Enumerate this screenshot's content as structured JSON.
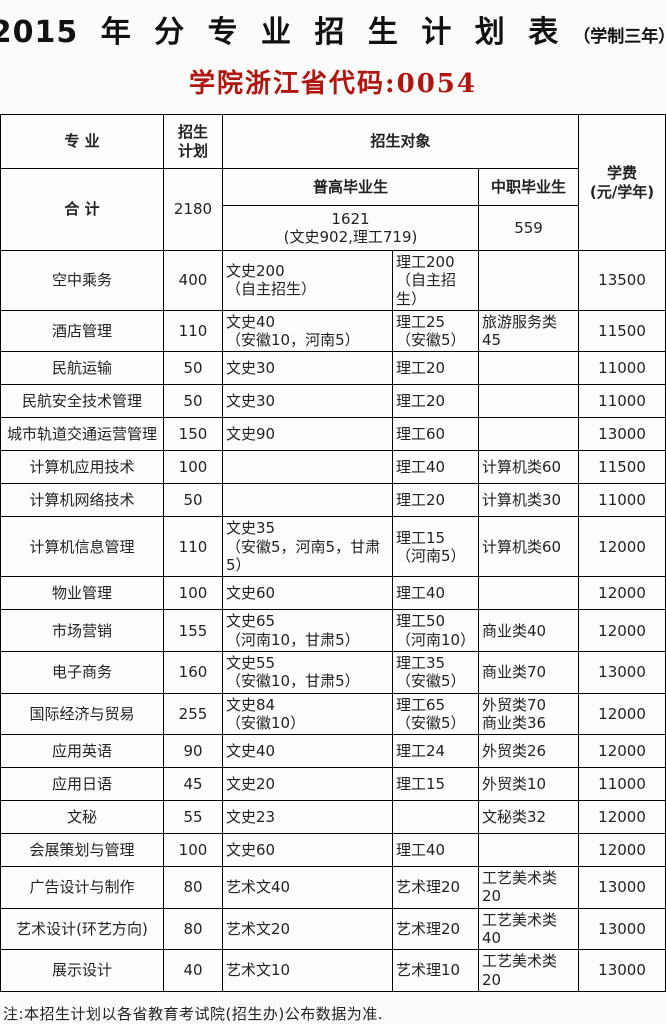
{
  "page": {
    "title": "2015 年 分 专 业 招 生 计 划 表",
    "title_suffix": "（学制三年）",
    "subtitle": "学院浙江省代码:0054",
    "note": "注:本招生计划以各省教育考试院(招生办)公布数据为准.",
    "colors": {
      "subtitle_red": "#b01510",
      "border": "#000000",
      "background": "#fbfbfa"
    }
  },
  "table": {
    "header": {
      "major": "专  业",
      "plan": "招生\n计划",
      "target": "招生对象",
      "regular": "普高毕业生",
      "vocational": "中职毕业生",
      "tuition": "学费\n(元/学年)"
    },
    "summary": {
      "label": "合 计",
      "plan": "2180",
      "regular_total": "1621\n(文史902,理工719)",
      "vocational_total": "559"
    },
    "rows": [
      {
        "major": "空中乘务",
        "plan": "400",
        "wenshi": "文史200\n（自主招生）",
        "ligong": "理工200\n（自主招生）",
        "vocational": "",
        "tuition": "13500"
      },
      {
        "major": "酒店管理",
        "plan": "110",
        "wenshi": "文史40\n（安徽10，河南5）",
        "ligong": "理工25\n（安徽5）",
        "vocational": "旅游服务类45",
        "tuition": "11500"
      },
      {
        "major": "民航运输",
        "plan": "50",
        "wenshi": "文史30",
        "ligong": "理工20",
        "vocational": "",
        "tuition": "11000"
      },
      {
        "major": "民航安全技术管理",
        "plan": "50",
        "wenshi": "文史30",
        "ligong": "理工20",
        "vocational": "",
        "tuition": "11000"
      },
      {
        "major": "城市轨道交通运营管理",
        "plan": "150",
        "wenshi": "文史90",
        "ligong": "理工60",
        "vocational": "",
        "tuition": "13000"
      },
      {
        "major": "计算机应用技术",
        "plan": "100",
        "wenshi": "",
        "ligong": "理工40",
        "vocational": "计算机类60",
        "tuition": "11500"
      },
      {
        "major": "计算机网络技术",
        "plan": "50",
        "wenshi": "",
        "ligong": "理工20",
        "vocational": "计算机类30",
        "tuition": "11000"
      },
      {
        "major": "计算机信息管理",
        "plan": "110",
        "wenshi": "文史35\n（安徽5，河南5，甘肃5）",
        "ligong": "理工15\n（河南5）",
        "vocational": "计算机类60",
        "tuition": "12000"
      },
      {
        "major": "物业管理",
        "plan": "100",
        "wenshi": "文史60",
        "ligong": "理工40",
        "vocational": "",
        "tuition": "12000"
      },
      {
        "major": "市场营销",
        "plan": "155",
        "wenshi": "文史65\n（河南10，甘肃5）",
        "ligong": "理工50\n（河南10）",
        "vocational": "商业类40",
        "tuition": "12000"
      },
      {
        "major": "电子商务",
        "plan": "160",
        "wenshi": "文史55\n（安徽10，甘肃5）",
        "ligong": "理工35\n（安徽5）",
        "vocational": "商业类70",
        "tuition": "13000"
      },
      {
        "major": "国际经济与贸易",
        "plan": "255",
        "wenshi": "文史84\n（安徽10）",
        "ligong": "理工65\n（安徽5）",
        "vocational": "外贸类70\n商业类36",
        "tuition": "12000"
      },
      {
        "major": "应用英语",
        "plan": "90",
        "wenshi": "文史40",
        "ligong": "理工24",
        "vocational": "外贸类26",
        "tuition": "12000"
      },
      {
        "major": "应用日语",
        "plan": "45",
        "wenshi": "文史20",
        "ligong": "理工15",
        "vocational": "外贸类10",
        "tuition": "11000"
      },
      {
        "major": "文秘",
        "plan": "55",
        "wenshi": "文史23",
        "ligong": "",
        "vocational": "文秘类32",
        "tuition": "12000"
      },
      {
        "major": "会展策划与管理",
        "plan": "100",
        "wenshi": "文史60",
        "ligong": "理工40",
        "vocational": "",
        "tuition": "12000"
      },
      {
        "major": "广告设计与制作",
        "plan": "80",
        "wenshi": "艺术文40",
        "ligong": "艺术理20",
        "vocational": "工艺美术类20",
        "tuition": "13000"
      },
      {
        "major": "艺术设计(环艺方向)",
        "plan": "80",
        "wenshi": "艺术文20",
        "ligong": "艺术理20",
        "vocational": "工艺美术类40",
        "tuition": "13000"
      },
      {
        "major": "展示设计",
        "plan": "40",
        "wenshi": "艺术文10",
        "ligong": "艺术理10",
        "vocational": "工艺美术类20",
        "tuition": "13000"
      }
    ]
  }
}
